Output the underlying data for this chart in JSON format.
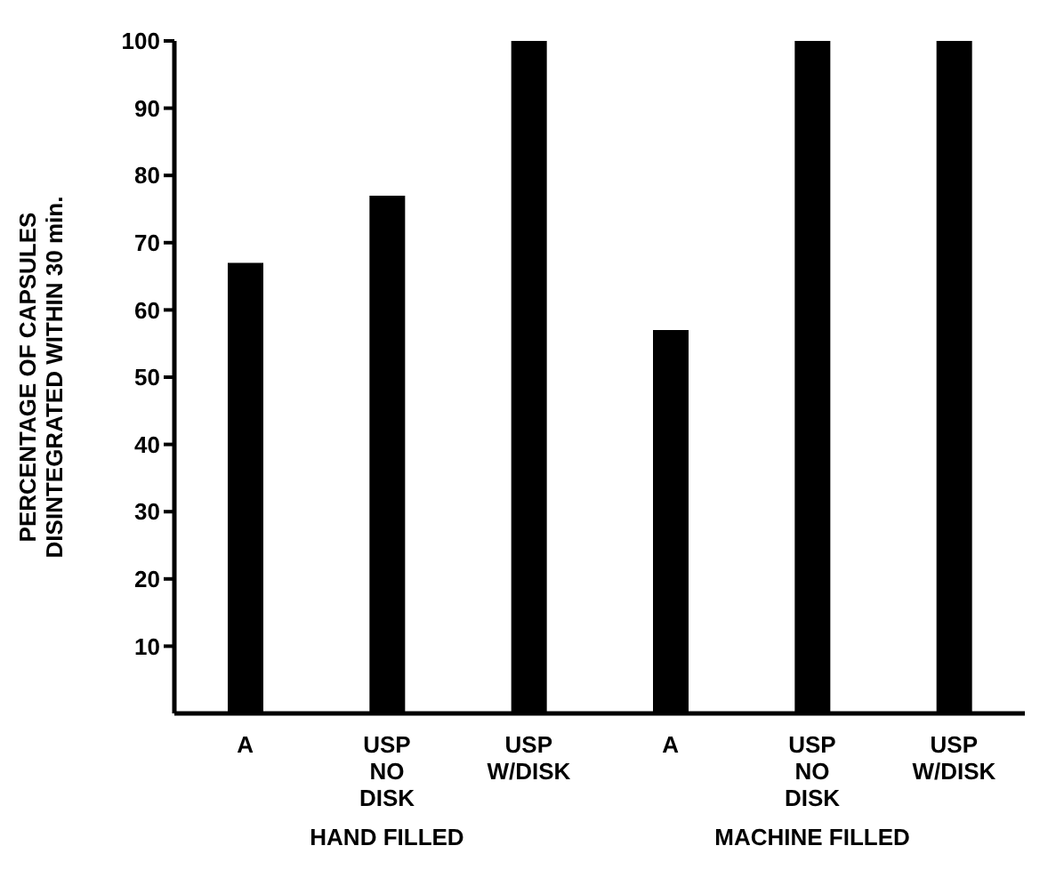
{
  "chart_data": {
    "type": "bar",
    "ylabel": "PERCENTAGE OF CAPSULES DISINTEGRATED WITHIN 30 min.",
    "categories": [
      "A",
      "USP NO DISK",
      "USP W/DISK",
      "A",
      "USP NO DISK",
      "USP W/DISK"
    ],
    "values": [
      67,
      77,
      100,
      57,
      100,
      100
    ],
    "color": "#000000",
    "ylim": [
      0,
      100
    ],
    "yticks": [
      10,
      20,
      30,
      40,
      50,
      60,
      70,
      80,
      90,
      100
    ],
    "grid": false,
    "annotations": [
      "HAND FILLED",
      "MACHINE FILLED"
    ]
  }
}
